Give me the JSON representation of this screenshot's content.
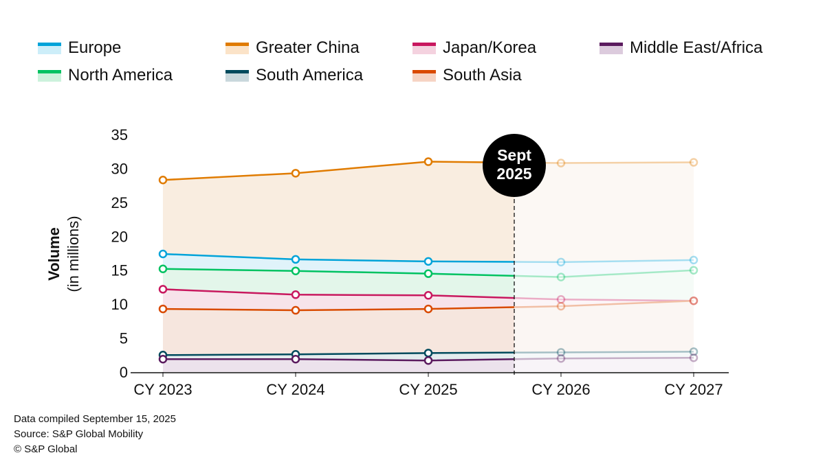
{
  "chart_data": {
    "type": "line",
    "title": "",
    "xlabel": "",
    "ylabel": "Volume",
    "ylabel_sub": "(in millions)",
    "categories": [
      "CY 2023",
      "CY 2024",
      "CY 2025",
      "CY 2026",
      "CY 2027"
    ],
    "ylim": [
      0,
      35
    ],
    "yticks": [
      0,
      5,
      10,
      15,
      20,
      25,
      30,
      35
    ],
    "grid": false,
    "legend_position": "top",
    "annotation": {
      "line1": "Sept",
      "line2": "2025"
    },
    "series": [
      {
        "name": "Greater China",
        "color": "#e07b00",
        "fill": "#f9ede0",
        "values": [
          28.3,
          29.3,
          31.0,
          30.8,
          30.9
        ]
      },
      {
        "name": "Europe",
        "color": "#00a3d9",
        "fill": "#e0f3fa",
        "values": [
          17.4,
          16.6,
          16.3,
          16.2,
          16.5
        ]
      },
      {
        "name": "North America",
        "color": "#00c261",
        "fill": "#e3f6ea",
        "values": [
          15.2,
          14.9,
          14.5,
          14.0,
          15.0
        ]
      },
      {
        "name": "Japan/Korea",
        "color": "#c8175e",
        "fill": "#f7e3ea",
        "values": [
          12.2,
          11.4,
          11.3,
          10.7,
          10.5
        ]
      },
      {
        "name": "South Asia",
        "color": "#d94a00",
        "fill": "#f6e6de",
        "values": [
          9.3,
          9.1,
          9.3,
          9.7,
          10.5
        ]
      },
      {
        "name": "South America",
        "color": "#004a5c",
        "fill": "#e3ecee",
        "values": [
          2.5,
          2.6,
          2.8,
          2.9,
          3.0
        ]
      },
      {
        "name": "Middle East/Africa",
        "color": "#5a1a5e",
        "fill": "#ece2ec",
        "values": [
          1.9,
          1.9,
          1.7,
          2.0,
          2.1
        ]
      }
    ],
    "legend": [
      {
        "name": "Europe",
        "color": "#00a3d9",
        "fill": "#cdeef9"
      },
      {
        "name": "Greater China",
        "color": "#e07b00",
        "fill": "#fbe3c8"
      },
      {
        "name": "Japan/Korea",
        "color": "#c8175e",
        "fill": "#f4d2df"
      },
      {
        "name": "Middle East/Africa",
        "color": "#5a1a5e",
        "fill": "#dccbdd"
      },
      {
        "name": "North America",
        "color": "#00c261",
        "fill": "#ccf2dc"
      },
      {
        "name": "South America",
        "color": "#004a5c",
        "fill": "#c9d8dc"
      },
      {
        "name": "South Asia",
        "color": "#d94a00",
        "fill": "#f6d4c4"
      }
    ]
  },
  "footer": {
    "line1": "Data compiled September 15, 2025",
    "line2": "Source: S&P Global Mobility",
    "line3": "© S&P Global"
  }
}
